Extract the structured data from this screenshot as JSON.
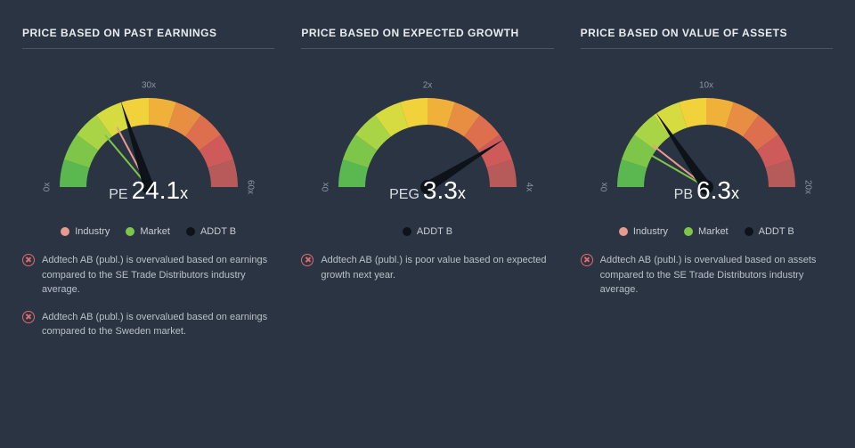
{
  "background_color": "#2a3442",
  "text_color": "#c8ced6",
  "title_color": "#e8ecef",
  "divider_color": "#4a5462",
  "note_icon_color": "#e06c6c",
  "gauge": {
    "outer_radius": 100,
    "inner_radius": 70,
    "needle_length": 102,
    "segment_colors": [
      "#5bb74f",
      "#7ec649",
      "#a9d445",
      "#d6dc3f",
      "#f2d23a",
      "#f0b13a",
      "#e88e42",
      "#dd6e4e",
      "#cf5a5a",
      "#b65a5a"
    ],
    "segment_count": 10,
    "track_color": "#3a4554",
    "needle_color": "#0e131a",
    "needle_hub_color": "#0e131a",
    "marker_radius": 6
  },
  "legend_colors": {
    "industry": "#e89a8e",
    "market": "#7ec649",
    "addtb": "#0e131a"
  },
  "panels": [
    {
      "title": "PRICE BASED ON PAST EARNINGS",
      "ticks": [
        {
          "label": "0x",
          "angle": -90
        },
        {
          "label": "30x",
          "angle": 0
        },
        {
          "label": "60x",
          "angle": 90
        }
      ],
      "metric_label": "PE",
      "metric_value": "24.1",
      "metric_suffix": "x",
      "needle_angle": -18,
      "markers": [
        {
          "color_key": "industry",
          "angle": -28
        },
        {
          "color_key": "market",
          "angle": -40
        }
      ],
      "legend": [
        {
          "color_key": "industry",
          "label": "Industry"
        },
        {
          "color_key": "market",
          "label": "Market"
        },
        {
          "color_key": "addtb",
          "label": "ADDT B"
        }
      ],
      "notes": [
        "Addtech AB (publ.) is overvalued based on earnings compared to the SE Trade Distributors industry average.",
        "Addtech AB (publ.) is overvalued based on earnings compared to the Sweden market."
      ]
    },
    {
      "title": "PRICE BASED ON EXPECTED GROWTH",
      "ticks": [
        {
          "label": "0x",
          "angle": -90
        },
        {
          "label": "2x",
          "angle": 0
        },
        {
          "label": "4x",
          "angle": 90
        }
      ],
      "metric_label": "PEG",
      "metric_value": "3.3",
      "metric_suffix": "x",
      "needle_angle": 58,
      "markers": [],
      "legend": [
        {
          "color_key": "addtb",
          "label": "ADDT B"
        }
      ],
      "notes": [
        "Addtech AB (publ.) is poor value based on expected growth next year."
      ]
    },
    {
      "title": "PRICE BASED ON VALUE OF ASSETS",
      "ticks": [
        {
          "label": "0x",
          "angle": -90
        },
        {
          "label": "10x",
          "angle": 0
        },
        {
          "label": "20x",
          "angle": 90
        }
      ],
      "metric_label": "PB",
      "metric_value": "6.3",
      "metric_suffix": "x",
      "needle_angle": -34,
      "markers": [
        {
          "color_key": "industry",
          "angle": -52
        },
        {
          "color_key": "market",
          "angle": -60
        }
      ],
      "legend": [
        {
          "color_key": "industry",
          "label": "Industry"
        },
        {
          "color_key": "market",
          "label": "Market"
        },
        {
          "color_key": "addtb",
          "label": "ADDT B"
        }
      ],
      "notes": [
        "Addtech AB (publ.) is overvalued based on assets compared to the SE Trade Distributors industry average."
      ]
    }
  ]
}
